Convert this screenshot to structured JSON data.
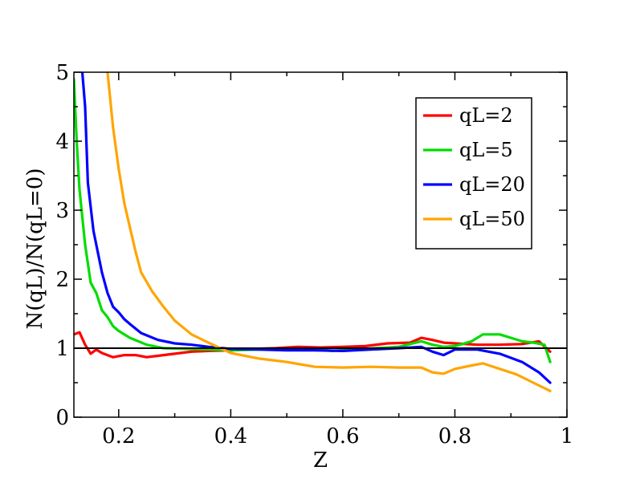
{
  "chart_data": {
    "type": "line",
    "title": "",
    "xlabel": "Z",
    "ylabel": "N(qL)/N(qL=0)",
    "xlim": [
      0.12,
      1.0
    ],
    "ylim": [
      0,
      5
    ],
    "x_ticks": [
      0.2,
      0.4,
      0.6,
      0.8,
      1.0
    ],
    "x_tick_labels": [
      "0.2",
      "0.4",
      "0.6",
      "0.8",
      "1"
    ],
    "y_ticks": [
      0,
      1,
      2,
      3,
      4,
      5
    ],
    "y_tick_labels": [
      "0",
      "1",
      "2",
      "3",
      "4",
      "5"
    ],
    "grid": false,
    "legend_position": "top-right",
    "reference_line": {
      "y": 1,
      "color": "#000000"
    },
    "series": [
      {
        "name": "qL=2",
        "color": "#ff0000",
        "points": [
          [
            0.12,
            1.2
          ],
          [
            0.13,
            1.23
          ],
          [
            0.14,
            1.05
          ],
          [
            0.15,
            0.92
          ],
          [
            0.16,
            0.98
          ],
          [
            0.17,
            0.93
          ],
          [
            0.19,
            0.87
          ],
          [
            0.21,
            0.9
          ],
          [
            0.23,
            0.9
          ],
          [
            0.25,
            0.87
          ],
          [
            0.28,
            0.9
          ],
          [
            0.3,
            0.92
          ],
          [
            0.33,
            0.95
          ],
          [
            0.36,
            0.96
          ],
          [
            0.4,
            0.97
          ],
          [
            0.44,
            0.99
          ],
          [
            0.48,
            1.0
          ],
          [
            0.52,
            1.02
          ],
          [
            0.56,
            1.01
          ],
          [
            0.6,
            1.02
          ],
          [
            0.64,
            1.03
          ],
          [
            0.68,
            1.07
          ],
          [
            0.72,
            1.08
          ],
          [
            0.74,
            1.15
          ],
          [
            0.76,
            1.12
          ],
          [
            0.78,
            1.08
          ],
          [
            0.8,
            1.07
          ],
          [
            0.84,
            1.05
          ],
          [
            0.88,
            1.05
          ],
          [
            0.92,
            1.06
          ],
          [
            0.95,
            1.1
          ],
          [
            0.97,
            0.95
          ]
        ]
      },
      {
        "name": "qL=5",
        "color": "#00dd00",
        "points": [
          [
            0.12,
            4.9
          ],
          [
            0.125,
            4.0
          ],
          [
            0.13,
            3.3
          ],
          [
            0.14,
            2.5
          ],
          [
            0.15,
            1.95
          ],
          [
            0.16,
            1.8
          ],
          [
            0.17,
            1.55
          ],
          [
            0.18,
            1.45
          ],
          [
            0.19,
            1.32
          ],
          [
            0.2,
            1.25
          ],
          [
            0.22,
            1.15
          ],
          [
            0.25,
            1.05
          ],
          [
            0.28,
            1.0
          ],
          [
            0.32,
            0.99
          ],
          [
            0.36,
            0.98
          ],
          [
            0.4,
            0.97
          ],
          [
            0.45,
            0.98
          ],
          [
            0.5,
            0.99
          ],
          [
            0.55,
            0.99
          ],
          [
            0.58,
            0.96
          ],
          [
            0.62,
            0.98
          ],
          [
            0.66,
            1.0
          ],
          [
            0.7,
            1.02
          ],
          [
            0.74,
            1.1
          ],
          [
            0.76,
            1.05
          ],
          [
            0.78,
            1.02
          ],
          [
            0.8,
            1.03
          ],
          [
            0.83,
            1.1
          ],
          [
            0.85,
            1.2
          ],
          [
            0.88,
            1.2
          ],
          [
            0.9,
            1.15
          ],
          [
            0.92,
            1.1
          ],
          [
            0.94,
            1.08
          ],
          [
            0.96,
            1.05
          ],
          [
            0.97,
            0.8
          ]
        ]
      },
      {
        "name": "qL=20",
        "color": "#0000ff",
        "points": [
          [
            0.135,
            5.0
          ],
          [
            0.14,
            4.5
          ],
          [
            0.145,
            3.4
          ],
          [
            0.155,
            2.7
          ],
          [
            0.17,
            2.1
          ],
          [
            0.18,
            1.8
          ],
          [
            0.19,
            1.6
          ],
          [
            0.2,
            1.52
          ],
          [
            0.21,
            1.42
          ],
          [
            0.22,
            1.35
          ],
          [
            0.24,
            1.22
          ],
          [
            0.27,
            1.12
          ],
          [
            0.3,
            1.07
          ],
          [
            0.33,
            1.05
          ],
          [
            0.36,
            1.02
          ],
          [
            0.4,
            0.99
          ],
          [
            0.45,
            0.98
          ],
          [
            0.5,
            0.97
          ],
          [
            0.55,
            0.97
          ],
          [
            0.6,
            0.96
          ],
          [
            0.65,
            0.98
          ],
          [
            0.7,
            1.0
          ],
          [
            0.74,
            1.02
          ],
          [
            0.76,
            0.95
          ],
          [
            0.78,
            0.9
          ],
          [
            0.8,
            0.98
          ],
          [
            0.84,
            0.98
          ],
          [
            0.88,
            0.92
          ],
          [
            0.92,
            0.8
          ],
          [
            0.95,
            0.65
          ],
          [
            0.97,
            0.5
          ]
        ]
      },
      {
        "name": "qL=50",
        "color": "#ffa500",
        "points": [
          [
            0.18,
            5.0
          ],
          [
            0.19,
            4.2
          ],
          [
            0.2,
            3.6
          ],
          [
            0.21,
            3.1
          ],
          [
            0.22,
            2.75
          ],
          [
            0.23,
            2.4
          ],
          [
            0.24,
            2.1
          ],
          [
            0.26,
            1.82
          ],
          [
            0.28,
            1.6
          ],
          [
            0.3,
            1.4
          ],
          [
            0.33,
            1.2
          ],
          [
            0.36,
            1.08
          ],
          [
            0.4,
            0.93
          ],
          [
            0.45,
            0.85
          ],
          [
            0.5,
            0.8
          ],
          [
            0.55,
            0.73
          ],
          [
            0.6,
            0.72
          ],
          [
            0.65,
            0.73
          ],
          [
            0.7,
            0.72
          ],
          [
            0.74,
            0.72
          ],
          [
            0.76,
            0.65
          ],
          [
            0.78,
            0.63
          ],
          [
            0.8,
            0.7
          ],
          [
            0.83,
            0.75
          ],
          [
            0.85,
            0.78
          ],
          [
            0.88,
            0.7
          ],
          [
            0.91,
            0.62
          ],
          [
            0.94,
            0.5
          ],
          [
            0.97,
            0.38
          ]
        ]
      }
    ]
  }
}
